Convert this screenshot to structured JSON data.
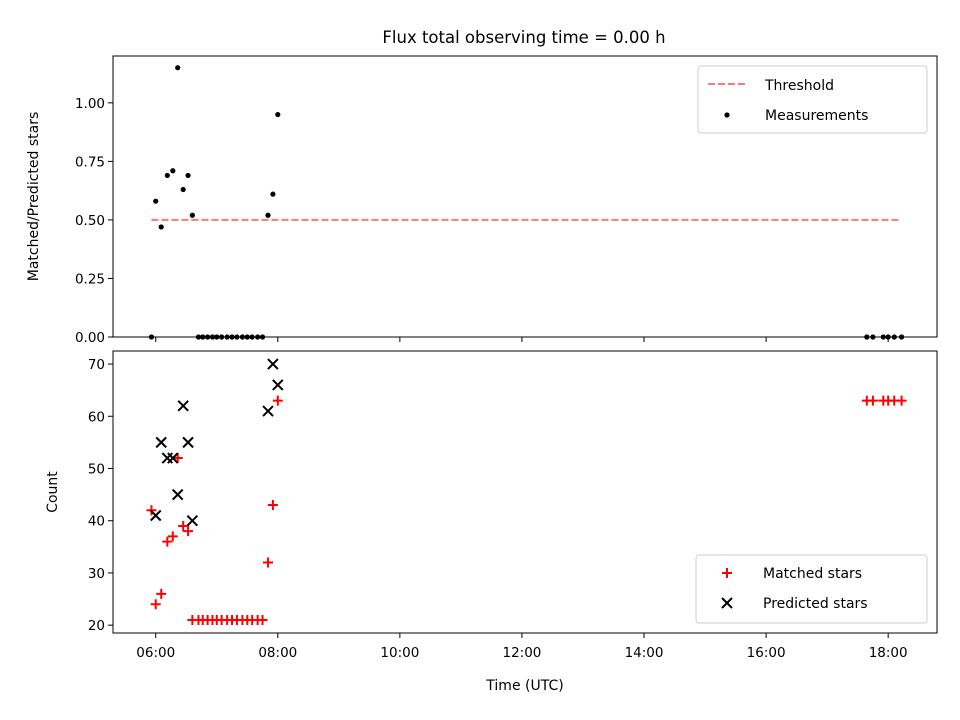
{
  "figure_title": "Flux total observing time = 0.00 h",
  "chart_data": [
    {
      "type": "scatter",
      "panel": "top",
      "title": "Flux total observing time = 0.00 h",
      "ylabel": "Matched/Predicted stars",
      "xlabel": "",
      "xlim": [
        5.3,
        18.8
      ],
      "ylim": [
        0,
        1.2
      ],
      "yticks": [
        0.0,
        0.25,
        0.5,
        0.75,
        1.0
      ],
      "ytick_labels": [
        "0.00",
        "0.25",
        "0.50",
        "0.75",
        "1.00"
      ],
      "grid": false,
      "legend": "top-right",
      "threshold": {
        "name": "Threshold",
        "color": "#ff7777",
        "y": 0.5,
        "x": [
          5.93,
          18.22
        ]
      },
      "series": [
        {
          "name": "Measurements",
          "color": "#000000",
          "points": [
            {
              "x": 5.93,
              "y": 0.0
            },
            {
              "x": 6.0,
              "y": 0.58
            },
            {
              "x": 6.09,
              "y": 0.47
            },
            {
              "x": 6.19,
              "y": 0.69
            },
            {
              "x": 6.28,
              "y": 0.71
            },
            {
              "x": 6.36,
              "y": 1.15
            },
            {
              "x": 6.45,
              "y": 0.63
            },
            {
              "x": 6.53,
              "y": 0.69
            },
            {
              "x": 6.6,
              "y": 0.52
            },
            {
              "x": 6.7,
              "y": 0.0
            },
            {
              "x": 6.77,
              "y": 0.0
            },
            {
              "x": 6.85,
              "y": 0.0
            },
            {
              "x": 6.93,
              "y": 0.0
            },
            {
              "x": 7.0,
              "y": 0.0
            },
            {
              "x": 7.08,
              "y": 0.0
            },
            {
              "x": 7.17,
              "y": 0.0
            },
            {
              "x": 7.25,
              "y": 0.0
            },
            {
              "x": 7.33,
              "y": 0.0
            },
            {
              "x": 7.42,
              "y": 0.0
            },
            {
              "x": 7.5,
              "y": 0.0
            },
            {
              "x": 7.58,
              "y": 0.0
            },
            {
              "x": 7.67,
              "y": 0.0
            },
            {
              "x": 7.75,
              "y": 0.0
            },
            {
              "x": 7.84,
              "y": 0.52
            },
            {
              "x": 7.92,
              "y": 0.61
            },
            {
              "x": 8.0,
              "y": 0.95
            },
            {
              "x": 17.65,
              "y": 0.0
            },
            {
              "x": 17.75,
              "y": 0.0
            },
            {
              "x": 17.92,
              "y": 0.0
            },
            {
              "x": 18.0,
              "y": 0.0
            },
            {
              "x": 18.1,
              "y": 0.0
            },
            {
              "x": 18.22,
              "y": 0.0
            }
          ]
        }
      ]
    },
    {
      "type": "scatter",
      "panel": "bottom",
      "title": "",
      "ylabel": "Count",
      "xlabel": "Time (UTC)",
      "xlim": [
        5.3,
        18.8
      ],
      "ylim": [
        18.5,
        72.5
      ],
      "yticks": [
        20,
        30,
        40,
        50,
        60,
        70
      ],
      "ytick_labels": [
        "20",
        "30",
        "40",
        "50",
        "60",
        "70"
      ],
      "xticks": [
        6,
        8,
        10,
        12,
        14,
        16,
        18
      ],
      "xtick_labels": [
        "06:00",
        "08:00",
        "10:00",
        "12:00",
        "14:00",
        "16:00",
        "18:00"
      ],
      "grid": false,
      "legend": "bottom-right",
      "series": [
        {
          "name": "Matched stars",
          "marker": "plus",
          "color": "#ff0000",
          "points": [
            {
              "x": 5.93,
              "y": 42
            },
            {
              "x": 6.0,
              "y": 24
            },
            {
              "x": 6.09,
              "y": 26
            },
            {
              "x": 6.19,
              "y": 36
            },
            {
              "x": 6.28,
              "y": 37
            },
            {
              "x": 6.36,
              "y": 52
            },
            {
              "x": 6.45,
              "y": 39
            },
            {
              "x": 6.53,
              "y": 38
            },
            {
              "x": 6.6,
              "y": 21
            },
            {
              "x": 6.7,
              "y": 21
            },
            {
              "x": 6.77,
              "y": 21
            },
            {
              "x": 6.85,
              "y": 21
            },
            {
              "x": 6.93,
              "y": 21
            },
            {
              "x": 7.0,
              "y": 21
            },
            {
              "x": 7.08,
              "y": 21
            },
            {
              "x": 7.17,
              "y": 21
            },
            {
              "x": 7.25,
              "y": 21
            },
            {
              "x": 7.33,
              "y": 21
            },
            {
              "x": 7.42,
              "y": 21
            },
            {
              "x": 7.5,
              "y": 21
            },
            {
              "x": 7.58,
              "y": 21
            },
            {
              "x": 7.67,
              "y": 21
            },
            {
              "x": 7.75,
              "y": 21
            },
            {
              "x": 7.84,
              "y": 32
            },
            {
              "x": 7.92,
              "y": 43
            },
            {
              "x": 8.0,
              "y": 63
            },
            {
              "x": 17.65,
              "y": 63
            },
            {
              "x": 17.75,
              "y": 63
            },
            {
              "x": 17.92,
              "y": 63
            },
            {
              "x": 18.0,
              "y": 63
            },
            {
              "x": 18.1,
              "y": 63
            },
            {
              "x": 18.22,
              "y": 63
            }
          ]
        },
        {
          "name": "Predicted stars",
          "marker": "x",
          "color": "#000000",
          "points": [
            {
              "x": 6.0,
              "y": 41
            },
            {
              "x": 6.09,
              "y": 55
            },
            {
              "x": 6.19,
              "y": 52
            },
            {
              "x": 6.28,
              "y": 52
            },
            {
              "x": 6.36,
              "y": 45
            },
            {
              "x": 6.45,
              "y": 62
            },
            {
              "x": 6.53,
              "y": 55
            },
            {
              "x": 6.6,
              "y": 40
            },
            {
              "x": 7.84,
              "y": 61
            },
            {
              "x": 7.92,
              "y": 70
            },
            {
              "x": 8.0,
              "y": 66
            }
          ]
        }
      ]
    }
  ]
}
